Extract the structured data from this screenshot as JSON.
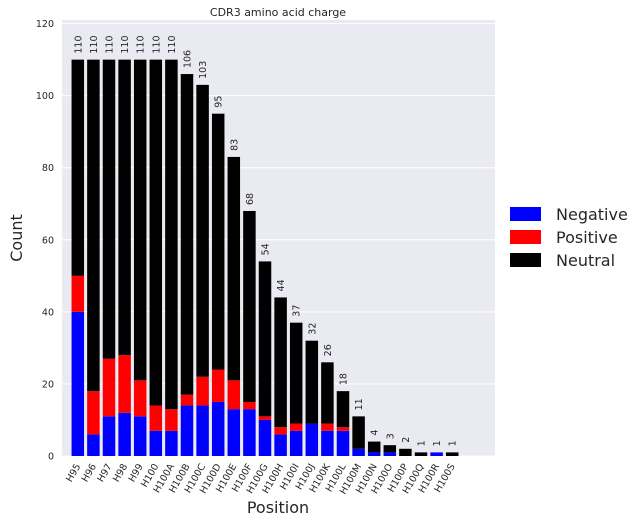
{
  "chart_data": {
    "type": "bar",
    "stacked": true,
    "title": "CDR3 amino acid charge",
    "xlabel": "Position",
    "ylabel": "Count",
    "ylim": [
      0,
      121
    ],
    "yticks": [
      0,
      20,
      40,
      60,
      80,
      100,
      120
    ],
    "grid": true,
    "legend_position": "right",
    "categories": [
      "H95",
      "H96",
      "H97",
      "H98",
      "H99",
      "H100",
      "H100A",
      "H100B",
      "H100C",
      "H100D",
      "H100E",
      "H100F",
      "H100G",
      "H100H",
      "H100I",
      "H100J",
      "H100K",
      "H100L",
      "H100M",
      "H100N",
      "H100O",
      "H100P",
      "H100Q",
      "H100R",
      "H100S"
    ],
    "series": [
      {
        "name": "Negative",
        "color": "#0000ff",
        "values": [
          40,
          6,
          11,
          12,
          11,
          7,
          7,
          14,
          14,
          15,
          13,
          13,
          10,
          6,
          7,
          9,
          7,
          7,
          2,
          1,
          1,
          0,
          0,
          1,
          0
        ]
      },
      {
        "name": "Positive",
        "color": "#ff0000",
        "values": [
          10,
          12,
          16,
          16,
          10,
          7,
          6,
          3,
          8,
          9,
          8,
          2,
          1,
          2,
          2,
          0,
          2,
          1,
          0,
          0,
          0,
          0,
          0,
          0,
          0
        ]
      },
      {
        "name": "Neutral",
        "color": "#000000",
        "values": [
          60,
          92,
          83,
          82,
          89,
          96,
          97,
          89,
          81,
          71,
          62,
          53,
          43,
          36,
          28,
          23,
          17,
          10,
          9,
          3,
          2,
          2,
          1,
          0,
          1
        ]
      }
    ],
    "totals": [
      110,
      110,
      110,
      110,
      110,
      110,
      110,
      106,
      103,
      95,
      83,
      68,
      54,
      44,
      37,
      32,
      26,
      18,
      11,
      4,
      3,
      2,
      1,
      1,
      1
    ]
  }
}
